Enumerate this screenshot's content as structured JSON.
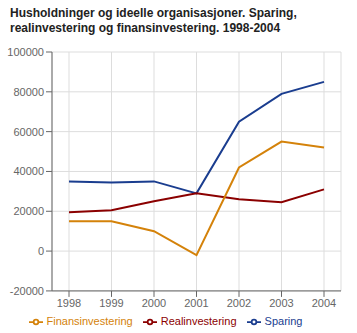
{
  "chart_data": {
    "type": "line",
    "title": "Husholdninger og ideelle organisasjoner. Sparing,\nrealinvestering og finansinvestering. 1998-2004",
    "x": [
      1998,
      1999,
      2000,
      2001,
      2002,
      2003,
      2004
    ],
    "series": [
      {
        "name": "Sparing",
        "color": "#1a3d8f",
        "values": [
          35000,
          34500,
          35000,
          29000,
          65000,
          79000,
          85000
        ]
      },
      {
        "name": "Realinvestering",
        "color": "#8b0000",
        "values": [
          19500,
          20500,
          25000,
          29000,
          26000,
          24500,
          31000
        ]
      },
      {
        "name": "Finansinvestering",
        "color": "#d4820a",
        "values": [
          15000,
          15000,
          10000,
          -2000,
          42000,
          55000,
          52000
        ]
      }
    ],
    "xlim": [
      1997.6,
      2004.4
    ],
    "xticks": [
      1998,
      1999,
      2000,
      2001,
      2002,
      2003,
      2004
    ],
    "ylim": [
      -20000,
      100000
    ],
    "yticks": [
      -20000,
      0,
      20000,
      40000,
      60000,
      80000,
      100000
    ],
    "grid": true,
    "legend": "bottom"
  }
}
